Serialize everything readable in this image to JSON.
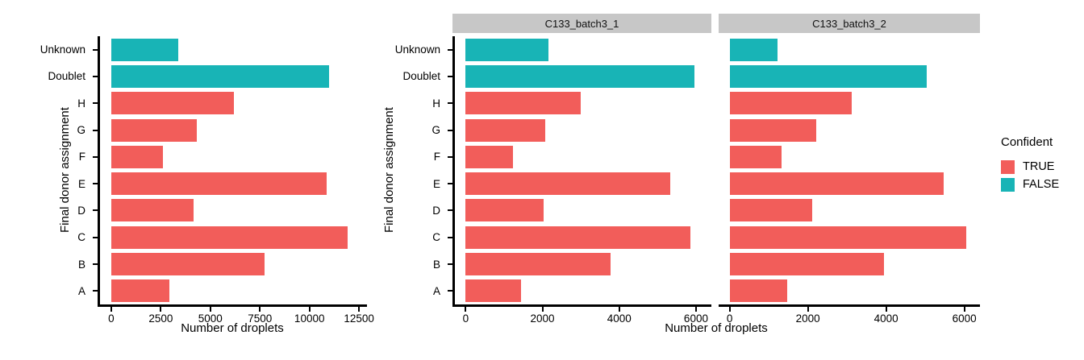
{
  "colors": {
    "true_bar": "#F25D5A",
    "false_bar": "#18B4B6",
    "strip_bg": "#C7C7C7",
    "axis": "#000000"
  },
  "legend": {
    "title": "Confident",
    "entries": [
      {
        "label": "TRUE",
        "color": "#F25D5A"
      },
      {
        "label": "FALSE",
        "color": "#18B4B6"
      }
    ]
  },
  "chart_data": [
    {
      "type": "bar",
      "orientation": "horizontal",
      "panel": "overall",
      "title": "",
      "xlabel": "Number of droplets",
      "ylabel": "Final donor assignment",
      "categories": [
        "Unknown",
        "Doublet",
        "H",
        "G",
        "F",
        "E",
        "D",
        "C",
        "B",
        "A"
      ],
      "values": [
        3400,
        11000,
        6170,
        4320,
        2590,
        10850,
        4160,
        11930,
        7740,
        2940
      ],
      "confident": [
        "FALSE",
        "FALSE",
        "TRUE",
        "TRUE",
        "TRUE",
        "TRUE",
        "TRUE",
        "TRUE",
        "TRUE",
        "TRUE"
      ],
      "xticks": [
        0,
        2500,
        5000,
        7500,
        10000,
        12500
      ],
      "xlim": [
        0,
        12900
      ],
      "grid": false,
      "legend_position": "none"
    },
    {
      "type": "bar",
      "orientation": "horizontal",
      "panel": "facet-1",
      "facet_label": "C133_batch3_1",
      "xlabel": "Number of droplets",
      "ylabel": "Final donor assignment",
      "categories": [
        "Unknown",
        "Doublet",
        "H",
        "G",
        "F",
        "E",
        "D",
        "C",
        "B",
        "A"
      ],
      "values": [
        2150,
        5960,
        3000,
        2080,
        1230,
        5330,
        2040,
        5850,
        3770,
        1440
      ],
      "confident": [
        "FALSE",
        "FALSE",
        "TRUE",
        "TRUE",
        "TRUE",
        "TRUE",
        "TRUE",
        "TRUE",
        "TRUE",
        "TRUE"
      ],
      "xticks": [
        0,
        2000,
        4000,
        6000
      ],
      "xlim": [
        0,
        6400
      ],
      "grid": false,
      "legend_position": "right"
    },
    {
      "type": "bar",
      "orientation": "horizontal",
      "panel": "facet-2",
      "facet_label": "C133_batch3_2",
      "xlabel": "Number of droplets",
      "ylabel": "Final donor assignment",
      "categories": [
        "Unknown",
        "Doublet",
        "H",
        "G",
        "F",
        "E",
        "D",
        "C",
        "B",
        "A"
      ],
      "values": [
        1220,
        5030,
        3130,
        2210,
        1320,
        5480,
        2110,
        6040,
        3950,
        1480
      ],
      "confident": [
        "FALSE",
        "FALSE",
        "TRUE",
        "TRUE",
        "TRUE",
        "TRUE",
        "TRUE",
        "TRUE",
        "TRUE",
        "TRUE"
      ],
      "xticks": [
        0,
        2000,
        4000,
        6000
      ],
      "xlim": [
        0,
        6400
      ],
      "grid": false,
      "legend_position": "right"
    }
  ]
}
